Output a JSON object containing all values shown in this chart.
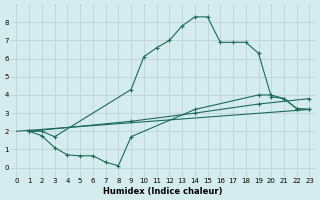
{
  "xlabel": "Humidex (Indice chaleur)",
  "bg_color": "#d4ecee",
  "grid_color": "#c0d4d6",
  "line_color": "#1a6b5a",
  "xlim": [
    -0.5,
    23.5
  ],
  "ylim": [
    -0.5,
    9.0
  ],
  "yticks": [
    0,
    1,
    2,
    3,
    4,
    5,
    6,
    7,
    8
  ],
  "xticks": [
    0,
    1,
    2,
    3,
    4,
    5,
    6,
    7,
    8,
    9,
    10,
    11,
    12,
    13,
    14,
    15,
    16,
    17,
    18,
    19,
    20,
    21,
    22,
    23
  ],
  "line1_x": [
    1,
    2,
    3,
    9,
    10,
    11,
    12,
    13,
    14,
    15,
    16,
    17,
    18,
    19,
    20,
    21,
    22,
    23
  ],
  "line1_y": [
    2.0,
    2.0,
    1.7,
    4.3,
    6.1,
    6.6,
    7.0,
    7.8,
    8.3,
    8.3,
    6.9,
    6.9,
    6.9,
    6.3,
    3.9,
    3.8,
    3.25,
    3.2
  ],
  "line2_x": [
    1,
    2,
    3,
    4,
    5,
    6,
    7,
    8,
    9,
    14,
    19,
    20,
    21,
    22,
    23
  ],
  "line2_y": [
    2.0,
    1.75,
    1.1,
    0.7,
    0.65,
    0.65,
    0.3,
    0.1,
    1.7,
    3.2,
    4.0,
    4.0,
    3.8,
    3.25,
    3.2
  ],
  "line3_x": [
    0,
    23
  ],
  "line3_y": [
    2.0,
    3.2
  ],
  "line4_x": [
    1,
    9,
    14,
    19,
    23
  ],
  "line4_y": [
    2.0,
    2.55,
    3.0,
    3.5,
    3.8
  ]
}
